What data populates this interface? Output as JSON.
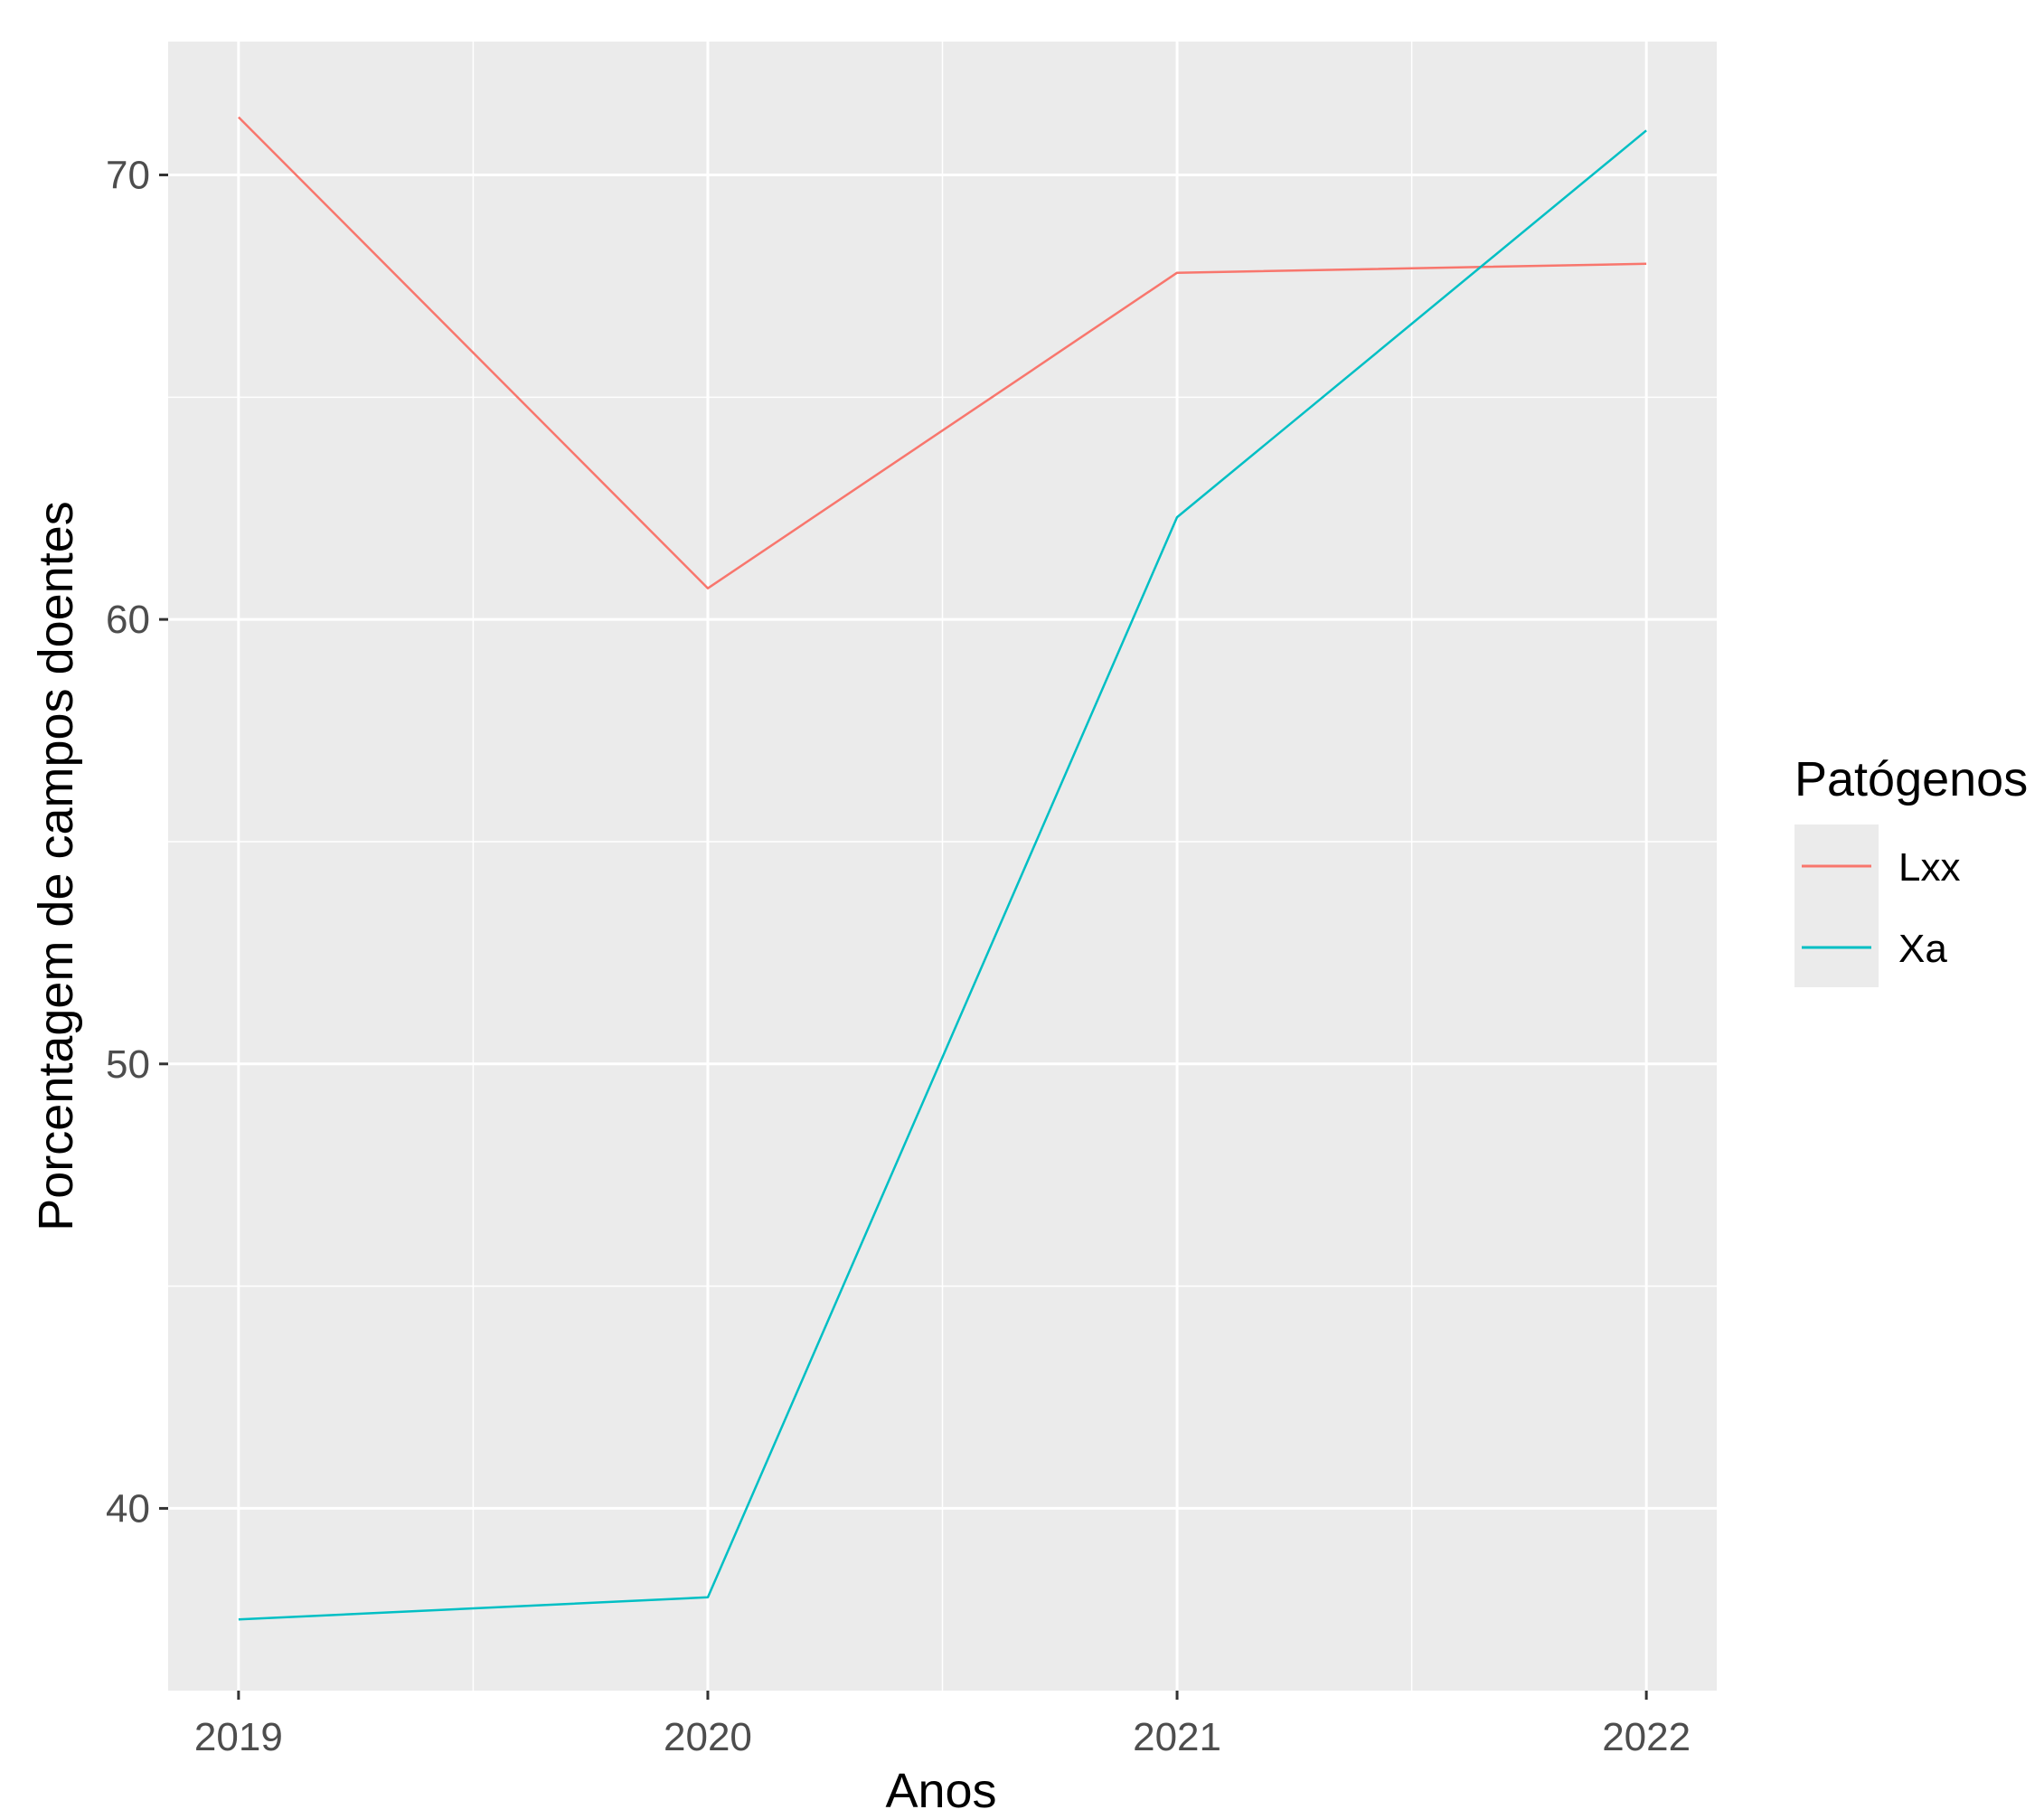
{
  "chart_data": {
    "type": "line",
    "title": "",
    "xlabel": "Anos",
    "ylabel": "Porcentagem de campos doentes",
    "x": [
      2019,
      2020,
      2021,
      2022
    ],
    "x_tick_labels": [
      "2019",
      "2020",
      "2021",
      "2022"
    ],
    "y_ticks": [
      40,
      50,
      60,
      70
    ],
    "y_tick_labels": [
      "40",
      "50",
      "60",
      "70"
    ],
    "xlim": [
      2018.85,
      2022.15
    ],
    "ylim": [
      35.9,
      73.0
    ],
    "grid": true,
    "legend": {
      "title": "Patógenos",
      "position": "right"
    },
    "series": [
      {
        "name": "Lxx",
        "color": "#F8766D",
        "values": [
          71.3,
          60.7,
          67.8,
          68.0
        ]
      },
      {
        "name": "Xa",
        "color": "#00BFC4",
        "values": [
          37.5,
          38.0,
          62.3,
          71.0
        ]
      }
    ]
  }
}
